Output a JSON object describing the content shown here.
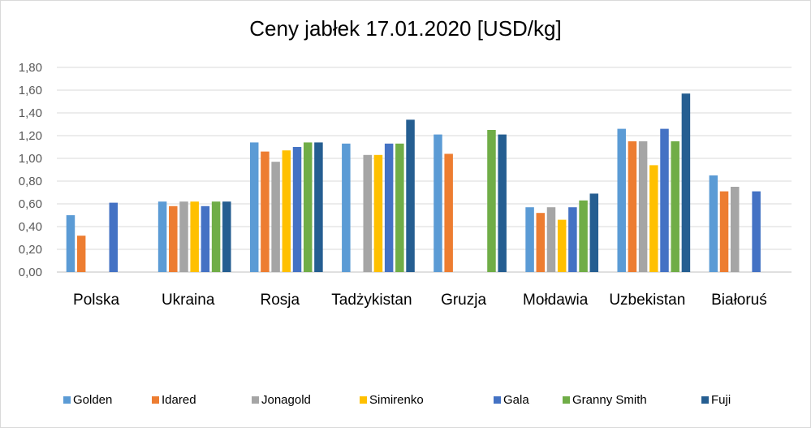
{
  "chart_data": {
    "type": "bar",
    "title": "Ceny jabłek 17.01.2020 [USD/kg]",
    "xlabel": "",
    "ylabel": "",
    "ylim": [
      0,
      1.8
    ],
    "yticks": [
      "0,00",
      "0,20",
      "0,40",
      "0,60",
      "0,80",
      "1,00",
      "1,20",
      "1,40",
      "1,60",
      "1,80"
    ],
    "grid": true,
    "legend_position": "bottom",
    "categories": [
      "Polska",
      "Ukraina",
      "Rosja",
      "Tadżykistan",
      "Gruzja",
      "Mołdawia",
      "Uzbekistan",
      "Białoruś"
    ],
    "series": [
      {
        "name": "Golden",
        "color": "#5b9bd5",
        "values": [
          0.5,
          0.62,
          1.14,
          1.13,
          1.21,
          0.57,
          1.26,
          0.85
        ]
      },
      {
        "name": "Idared",
        "color": "#ed7d31",
        "values": [
          0.32,
          0.58,
          1.06,
          null,
          1.04,
          0.52,
          1.15,
          0.71
        ]
      },
      {
        "name": "Jonagold",
        "color": "#a5a5a5",
        "values": [
          null,
          0.62,
          0.97,
          1.03,
          null,
          0.57,
          1.15,
          0.75
        ]
      },
      {
        "name": "Simirenko",
        "color": "#ffc000",
        "values": [
          null,
          0.62,
          1.07,
          1.03,
          null,
          0.46,
          0.94,
          null
        ]
      },
      {
        "name": "Gala",
        "color": "#4472c4",
        "values": [
          0.61,
          0.58,
          1.1,
          1.13,
          null,
          0.57,
          1.26,
          0.71
        ]
      },
      {
        "name": "Granny Smith",
        "color": "#70ad47",
        "values": [
          null,
          0.62,
          1.14,
          1.13,
          1.25,
          0.63,
          1.15,
          null
        ]
      },
      {
        "name": "Fuji",
        "color": "#255e91",
        "values": [
          null,
          0.62,
          1.14,
          1.34,
          1.21,
          0.69,
          1.57,
          null
        ]
      }
    ]
  }
}
